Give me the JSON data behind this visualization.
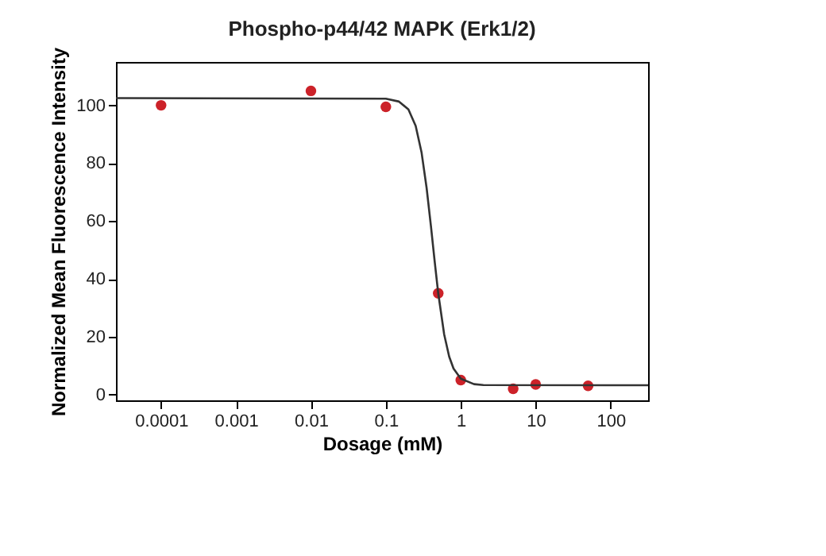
{
  "chart_data": {
    "type": "scatter",
    "title": "Phospho-p44/42 MAPK (Erk1/2)",
    "xlabel": "Dosage (mM)",
    "ylabel": "Normalized Mean Fluorescence Intensity",
    "log": "x",
    "xlim": [
      2.5e-05,
      316
    ],
    "xticks": [
      0.0001,
      0.001,
      0.01,
      0.1,
      1,
      10,
      100
    ],
    "ylim": [
      -2,
      115
    ],
    "yticks": [
      0,
      20,
      40,
      60,
      80,
      100
    ],
    "grid": false,
    "legend": false,
    "series": [
      {
        "color": "#cc2229",
        "marker": "circle",
        "x": [
          0.0001,
          0.01,
          0.1,
          0.5,
          1,
          5,
          10,
          50
        ],
        "values": [
          100,
          105,
          99.5,
          35,
          5,
          2,
          3.5,
          3
        ]
      },
      {
        "type": "line",
        "color": "#333333",
        "line_style": "solid",
        "marker": "none",
        "x": [
          2.5e-05,
          0.1,
          0.15,
          0.2,
          0.25,
          0.3,
          0.35,
          0.4,
          0.45,
          0.5,
          0.6,
          0.7,
          0.8,
          1,
          1.5,
          2,
          316
        ],
        "values": [
          102.5,
          102.3,
          101.3,
          98.6,
          92.9,
          83.6,
          71.4,
          58.1,
          45.6,
          35,
          20.8,
          13.1,
          9,
          5.5,
          3.6,
          3.3,
          3.2
        ]
      }
    ]
  }
}
